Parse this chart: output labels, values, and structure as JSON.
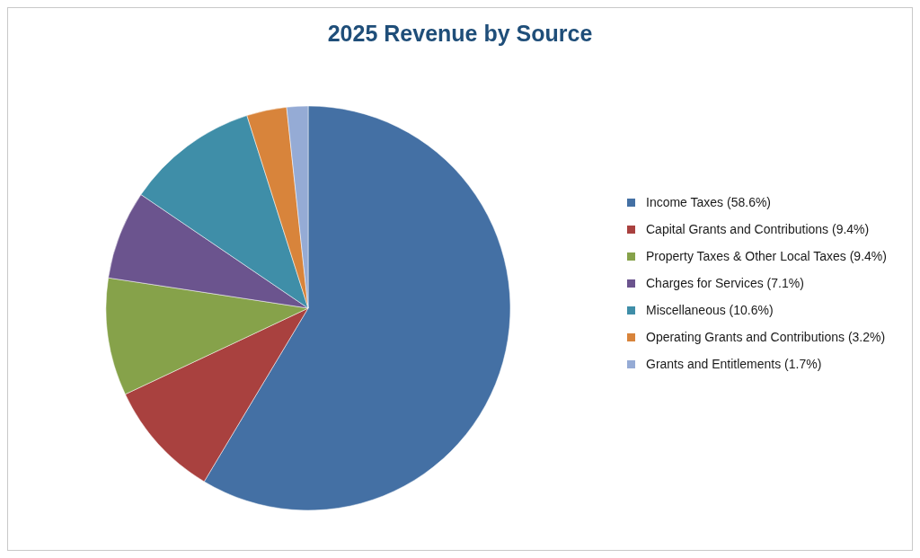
{
  "chart_data": {
    "type": "pie",
    "title": "2025 Revenue by Source",
    "categories": [
      "Income Taxes (58.6%)",
      "Capital Grants and Contributions (9.4%)",
      "Property Taxes & Other Local Taxes (9.4%)",
      "Charges for Services (7.1%)",
      "Miscellaneous (10.6%)",
      "Operating Grants and Contributions (3.2%)",
      "Grants and Entitlements (1.7%)"
    ],
    "values": [
      58.6,
      9.4,
      9.4,
      7.1,
      10.6,
      3.2,
      1.7
    ],
    "colors": [
      "#4470a4",
      "#a9413f",
      "#86a24a",
      "#6b548e",
      "#3f8ea8",
      "#d8843b",
      "#95abd5"
    ],
    "legend": "right"
  }
}
